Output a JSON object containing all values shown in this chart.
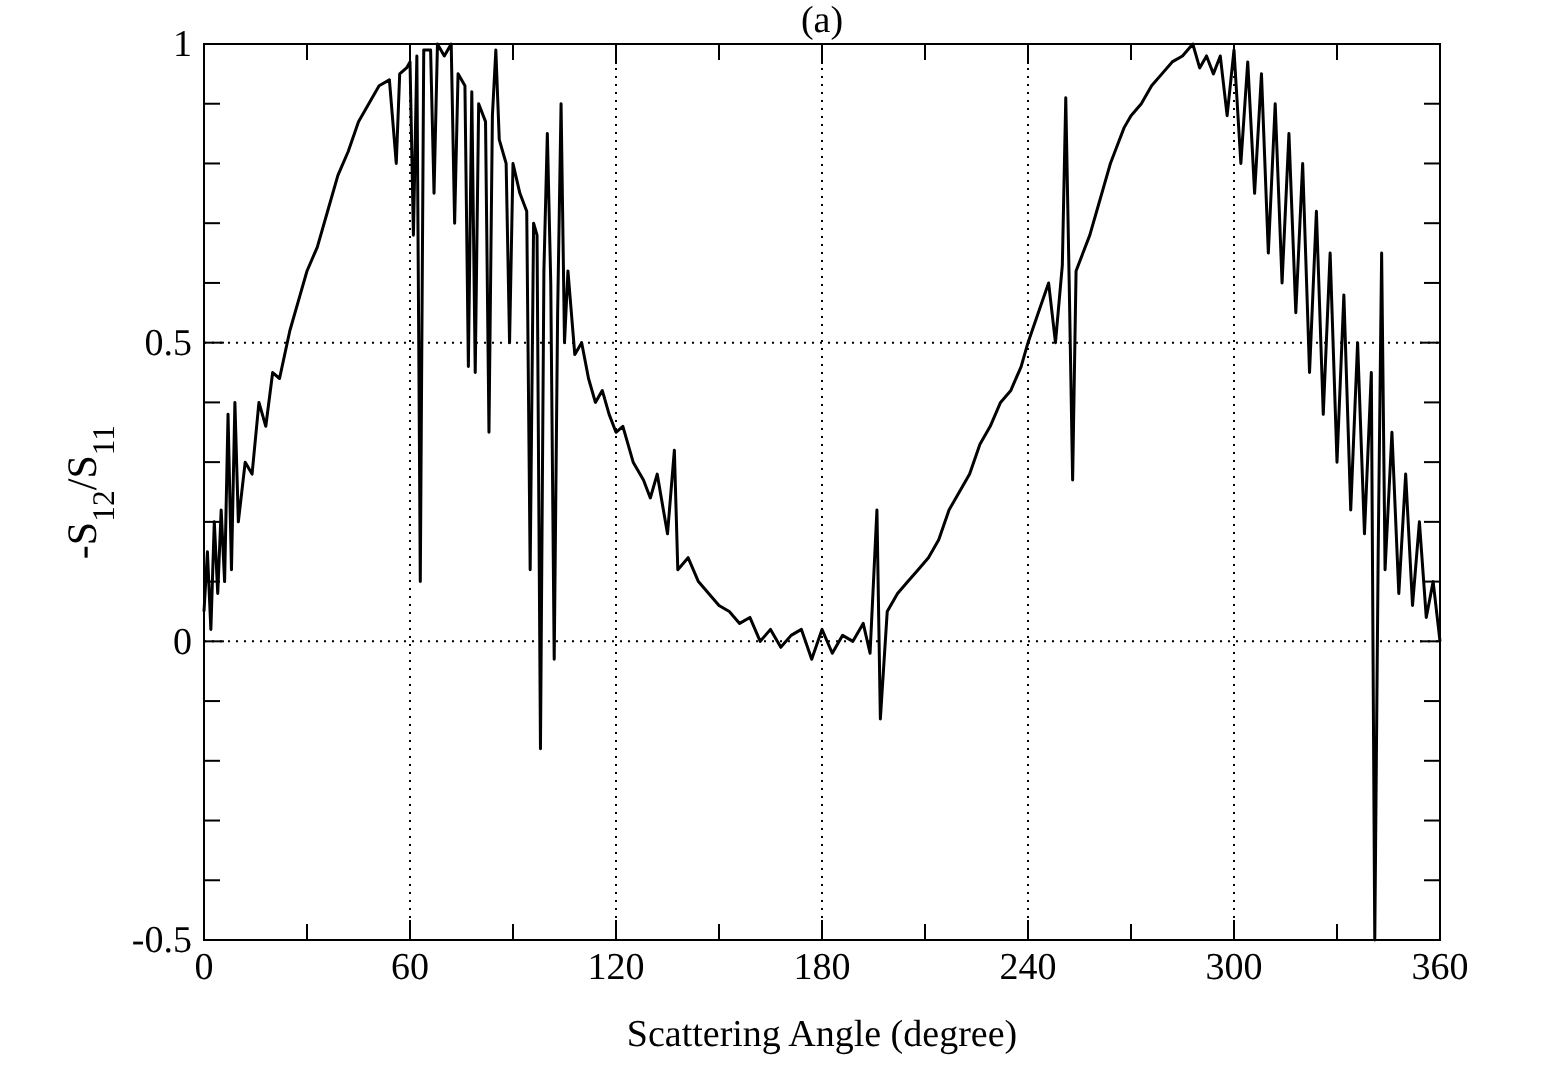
{
  "chart_data": {
    "type": "line",
    "title": "(a)",
    "xlabel": "Scattering Angle (degree)",
    "ylabel": "-S$_{12}$/S$_{11}$",
    "xlim": [
      0,
      360
    ],
    "ylim": [
      -0.5,
      1
    ],
    "xticks": [
      0,
      {
        "value": 30,
        "label": null
      },
      60,
      {
        "value": 90,
        "label": null
      },
      120,
      {
        "value": 150,
        "label": null
      },
      180,
      {
        "value": 210,
        "label": null
      },
      240,
      {
        "value": 270,
        "label": null
      },
      300,
      {
        "value": 330,
        "label": null
      },
      360
    ],
    "yticks": [
      -0.5,
      {
        "value": -0.4,
        "label": null
      },
      {
        "value": -0.3,
        "label": null
      },
      {
        "value": -0.2,
        "label": null
      },
      {
        "value": -0.1,
        "label": null
      },
      0,
      {
        "value": 0.1,
        "label": null
      },
      {
        "value": 0.2,
        "label": null
      },
      {
        "value": 0.3,
        "label": null
      },
      {
        "value": 0.4,
        "label": null
      },
      0.5,
      {
        "value": 0.6,
        "label": null
      },
      {
        "value": 0.7,
        "label": null
      },
      {
        "value": 0.8,
        "label": null
      },
      {
        "value": 0.9,
        "label": null
      },
      1
    ],
    "grid": true,
    "marker": "none",
    "line_style": "solid",
    "series": [
      {
        "color": "#000000",
        "x": [
          0,
          1,
          2,
          3,
          4,
          5,
          6,
          7,
          8,
          9,
          10,
          12,
          14,
          16,
          18,
          20,
          22,
          25,
          28,
          30,
          33,
          36,
          39,
          42,
          45,
          48,
          51,
          54,
          56,
          57,
          59,
          60,
          61,
          62,
          63,
          64,
          66,
          67,
          68,
          70,
          72,
          73,
          74,
          76,
          77,
          78,
          79,
          80,
          82,
          83,
          84,
          85,
          86,
          88,
          89,
          90,
          92,
          94,
          95,
          96,
          97,
          98,
          99,
          100,
          101,
          102,
          103,
          104,
          105,
          106,
          108,
          110,
          112,
          114,
          116,
          118,
          120,
          122,
          125,
          128,
          130,
          132,
          135,
          137,
          138,
          141,
          144,
          147,
          150,
          153,
          156,
          159,
          162,
          165,
          168,
          171,
          174,
          177,
          180,
          183,
          186,
          189,
          192,
          194,
          196,
          197,
          199,
          202,
          205,
          208,
          211,
          214,
          217,
          220,
          223,
          226,
          229,
          232,
          235,
          238,
          240,
          243,
          246,
          248,
          250,
          251,
          252,
          253,
          254,
          256,
          258,
          260,
          262,
          264,
          266,
          268,
          270,
          273,
          276,
          279,
          282,
          285,
          288,
          290,
          292,
          294,
          296,
          298,
          300,
          302,
          304,
          306,
          308,
          310,
          312,
          314,
          316,
          318,
          320,
          322,
          324,
          326,
          328,
          330,
          332,
          334,
          336,
          338,
          340,
          341,
          342,
          343,
          344,
          346,
          348,
          350,
          352,
          354,
          356,
          358,
          360
        ],
        "values": [
          0.05,
          0.15,
          0.02,
          0.2,
          0.08,
          0.22,
          0.1,
          0.38,
          0.12,
          0.4,
          0.2,
          0.3,
          0.28,
          0.4,
          0.36,
          0.45,
          0.44,
          0.52,
          0.58,
          0.62,
          0.66,
          0.72,
          0.78,
          0.82,
          0.87,
          0.9,
          0.93,
          0.94,
          0.8,
          0.95,
          0.96,
          0.97,
          0.68,
          0.98,
          0.1,
          0.99,
          0.99,
          0.75,
          1,
          0.98,
          1,
          0.7,
          0.95,
          0.93,
          0.46,
          0.92,
          0.45,
          0.9,
          0.87,
          0.35,
          0.88,
          0.99,
          0.84,
          0.8,
          0.5,
          0.8,
          0.75,
          0.72,
          0.12,
          0.7,
          0.68,
          -0.18,
          0.62,
          0.85,
          0.6,
          -0.03,
          0.55,
          0.9,
          0.5,
          0.62,
          0.48,
          0.5,
          0.44,
          0.4,
          0.42,
          0.38,
          0.35,
          0.36,
          0.3,
          0.27,
          0.24,
          0.28,
          0.18,
          0.32,
          0.12,
          0.14,
          0.1,
          0.08,
          0.06,
          0.05,
          0.03,
          0.04,
          0,
          0.02,
          -0.01,
          0.01,
          0.02,
          -0.03,
          0.02,
          -0.02,
          0.01,
          0,
          0.03,
          -0.02,
          0.22,
          -0.13,
          0.05,
          0.08,
          0.1,
          0.12,
          0.14,
          0.17,
          0.22,
          0.25,
          0.28,
          0.33,
          0.36,
          0.4,
          0.42,
          0.46,
          0.5,
          0.55,
          0.6,
          0.5,
          0.63,
          0.91,
          0.6,
          0.27,
          0.62,
          0.65,
          0.68,
          0.72,
          0.76,
          0.8,
          0.83,
          0.86,
          0.88,
          0.9,
          0.93,
          0.95,
          0.97,
          0.98,
          1,
          0.96,
          0.98,
          0.95,
          0.98,
          0.88,
          0.99,
          0.8,
          0.97,
          0.75,
          0.95,
          0.65,
          0.9,
          0.6,
          0.85,
          0.55,
          0.8,
          0.45,
          0.72,
          0.38,
          0.65,
          0.3,
          0.58,
          0.22,
          0.5,
          0.18,
          0.45,
          -0.5,
          0.15,
          0.65,
          0.12,
          0.35,
          0.08,
          0.28,
          0.06,
          0.2,
          0.04,
          0.1,
          0
        ]
      }
    ]
  }
}
